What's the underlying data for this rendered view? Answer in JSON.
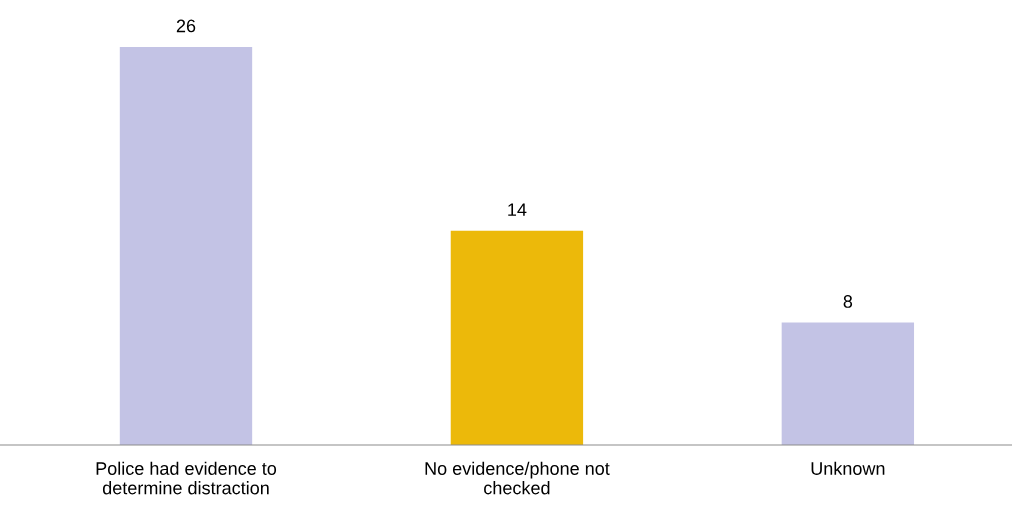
{
  "chart_data": {
    "type": "bar",
    "categories": [
      "Police had evidence to\ndetermine distraction",
      "No evidence/phone not\nchecked",
      "Unknown"
    ],
    "values": [
      26,
      14,
      8
    ],
    "colors": [
      "#c3c3e5",
      "#ecb90a",
      "#c3c3e5"
    ],
    "data_labels": true,
    "grid": false,
    "legend": false
  }
}
